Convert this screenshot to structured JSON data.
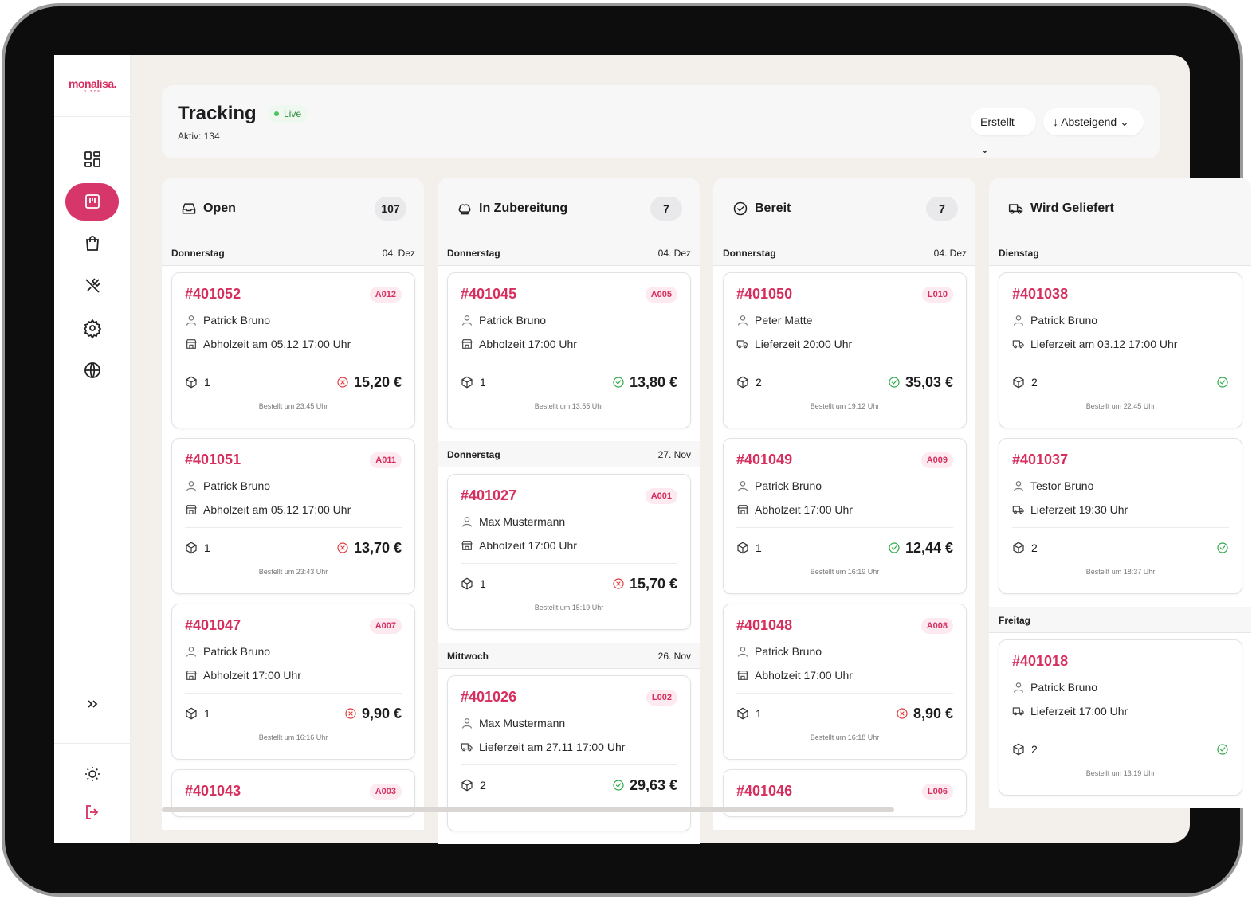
{
  "brand": {
    "name": "monalisa.",
    "sub": "pizza"
  },
  "header": {
    "title": "Tracking",
    "badge": "Live",
    "subtitle": "Aktiv: 134",
    "sort_field": "Erstellt",
    "sort_order": "Absteigend"
  },
  "columns": [
    {
      "title": "Open",
      "count": 107,
      "icon": "inbox",
      "groups": [
        {
          "day": "Donnerstag",
          "date": "04. Dez",
          "orders": [
            {
              "id": "#401052",
              "code": "A012",
              "customer": "Patrick Bruno",
              "time": "Abholzeit am 05.12 17:00 Uhr",
              "delivery": false,
              "items": 1,
              "price": "15,20 €",
              "paid": false,
              "ordered": "Bestellt um 23:45 Uhr"
            },
            {
              "id": "#401051",
              "code": "A011",
              "customer": "Patrick Bruno",
              "time": "Abholzeit am 05.12 17:00 Uhr",
              "delivery": false,
              "items": 1,
              "price": "13,70 €",
              "paid": false,
              "ordered": "Bestellt um 23:43 Uhr"
            },
            {
              "id": "#401047",
              "code": "A007",
              "customer": "Patrick Bruno",
              "time": "Abholzeit 17:00 Uhr",
              "delivery": false,
              "items": 1,
              "price": "9,90 €",
              "paid": false,
              "ordered": "Bestellt um 16:16 Uhr"
            },
            {
              "id": "#401043",
              "code": "A003"
            }
          ]
        }
      ]
    },
    {
      "title": "In Zubereitung",
      "count": 7,
      "icon": "chef",
      "groups": [
        {
          "day": "Donnerstag",
          "date": "04. Dez",
          "orders": [
            {
              "id": "#401045",
              "code": "A005",
              "customer": "Patrick Bruno",
              "time": "Abholzeit 17:00 Uhr",
              "delivery": false,
              "items": 1,
              "price": "13,80 €",
              "paid": true,
              "ordered": "Bestellt um 13:55 Uhr"
            }
          ]
        },
        {
          "day": "Donnerstag",
          "date": "27. Nov",
          "orders": [
            {
              "id": "#401027",
              "code": "A001",
              "customer": "Max Mustermann",
              "time": "Abholzeit 17:00 Uhr",
              "delivery": false,
              "items": 1,
              "price": "15,70 €",
              "paid": false,
              "ordered": "Bestellt um 15:19 Uhr"
            }
          ]
        },
        {
          "day": "Mittwoch",
          "date": "26. Nov",
          "orders": [
            {
              "id": "#401026",
              "code": "L002",
              "customer": "Max Mustermann",
              "time": "Lieferzeit am 27.11 17:00 Uhr",
              "delivery": true,
              "items": 2,
              "price": "29,63 €",
              "paid": true
            }
          ]
        }
      ]
    },
    {
      "title": "Bereit",
      "count": 7,
      "icon": "check",
      "groups": [
        {
          "day": "Donnerstag",
          "date": "04. Dez",
          "orders": [
            {
              "id": "#401050",
              "code": "L010",
              "customer": "Peter Matte",
              "time": "Lieferzeit 20:00 Uhr",
              "delivery": true,
              "items": 2,
              "price": "35,03 €",
              "paid": true,
              "ordered": "Bestellt um 19:12 Uhr"
            },
            {
              "id": "#401049",
              "code": "A009",
              "customer": "Patrick Bruno",
              "time": "Abholzeit 17:00 Uhr",
              "delivery": false,
              "items": 1,
              "price": "12,44 €",
              "paid": true,
              "ordered": "Bestellt um 16:19 Uhr"
            },
            {
              "id": "#401048",
              "code": "A008",
              "customer": "Patrick Bruno",
              "time": "Abholzeit 17:00 Uhr",
              "delivery": false,
              "items": 1,
              "price": "8,90 €",
              "paid": false,
              "ordered": "Bestellt um 16:18 Uhr"
            },
            {
              "id": "#401046",
              "code": "L006"
            }
          ]
        }
      ]
    },
    {
      "title": "Wird Geliefert",
      "icon": "truck",
      "groups": [
        {
          "day": "Dienstag",
          "orders": [
            {
              "id": "#401038",
              "customer": "Patrick Bruno",
              "time": "Lieferzeit am 03.12 17:00 Uhr",
              "delivery": true,
              "items": 2,
              "paid": true,
              "ordered": "Bestellt um 22:45 Uhr"
            },
            {
              "id": "#401037",
              "customer": "Testor Bruno",
              "time": "Lieferzeit 19:30 Uhr",
              "delivery": true,
              "items": 2,
              "paid": true,
              "ordered": "Bestellt um 18:37 Uhr"
            }
          ]
        },
        {
          "day": "Freitag",
          "orders": [
            {
              "id": "#401018",
              "customer": "Patrick Bruno",
              "time": "Lieferzeit 17:00 Uhr",
              "delivery": true,
              "items": 2,
              "paid": true,
              "ordered": "Bestellt um 13:19 Uhr"
            }
          ]
        }
      ]
    }
  ]
}
